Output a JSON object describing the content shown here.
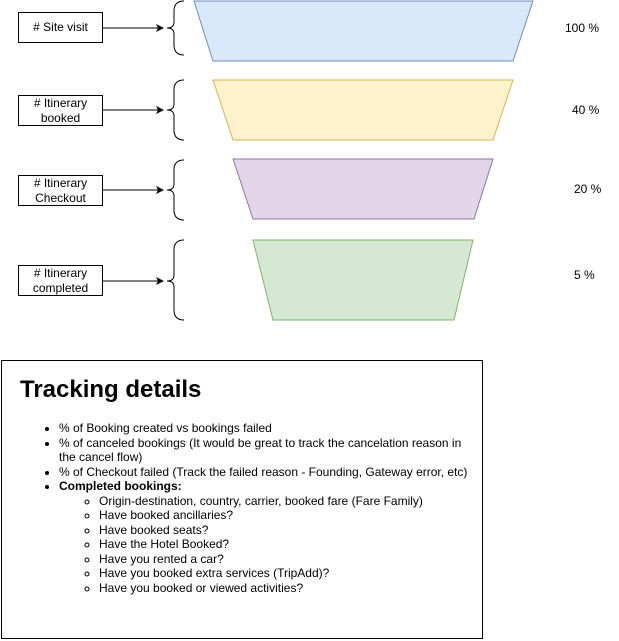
{
  "funnel": {
    "stages": [
      {
        "label_lines": [
          "# Site visit"
        ],
        "percent": "100 %",
        "fill": "#dae8fc",
        "stroke": "#6c8ebf"
      },
      {
        "label_lines": [
          "# Itinerary",
          "booked"
        ],
        "percent": "40 %",
        "fill": "#fff2cc",
        "stroke": "#d6b656"
      },
      {
        "label_lines": [
          "# Itinerary",
          "Checkout"
        ],
        "percent": "20 %",
        "fill": "#e1d5e7",
        "stroke": "#9673a6"
      },
      {
        "label_lines": [
          "# Itinerary",
          "completed"
        ],
        "percent": "5 %",
        "fill": "#d5e8d4",
        "stroke": "#82b366"
      }
    ]
  },
  "tracking": {
    "title": "Tracking details",
    "items": [
      "% of Booking created vs bookings failed",
      "% of canceled bookings (It would be great to track the cancelation reason in the cancel flow)",
      "% of Checkout failed (Track the failed reason - Founding, Gateway error, etc)"
    ],
    "completed_heading": "Completed bookings:",
    "completed_items": [
      "Origin-destination, country, carrier, booked fare (Fare Family)",
      "Have booked ancillaries?",
      "Have booked seats?",
      "Have the Hotel Booked?",
      "Have you rented a car?",
      "Have you booked extra services (TripAdd)?",
      "Have you booked or viewed activities?"
    ]
  }
}
